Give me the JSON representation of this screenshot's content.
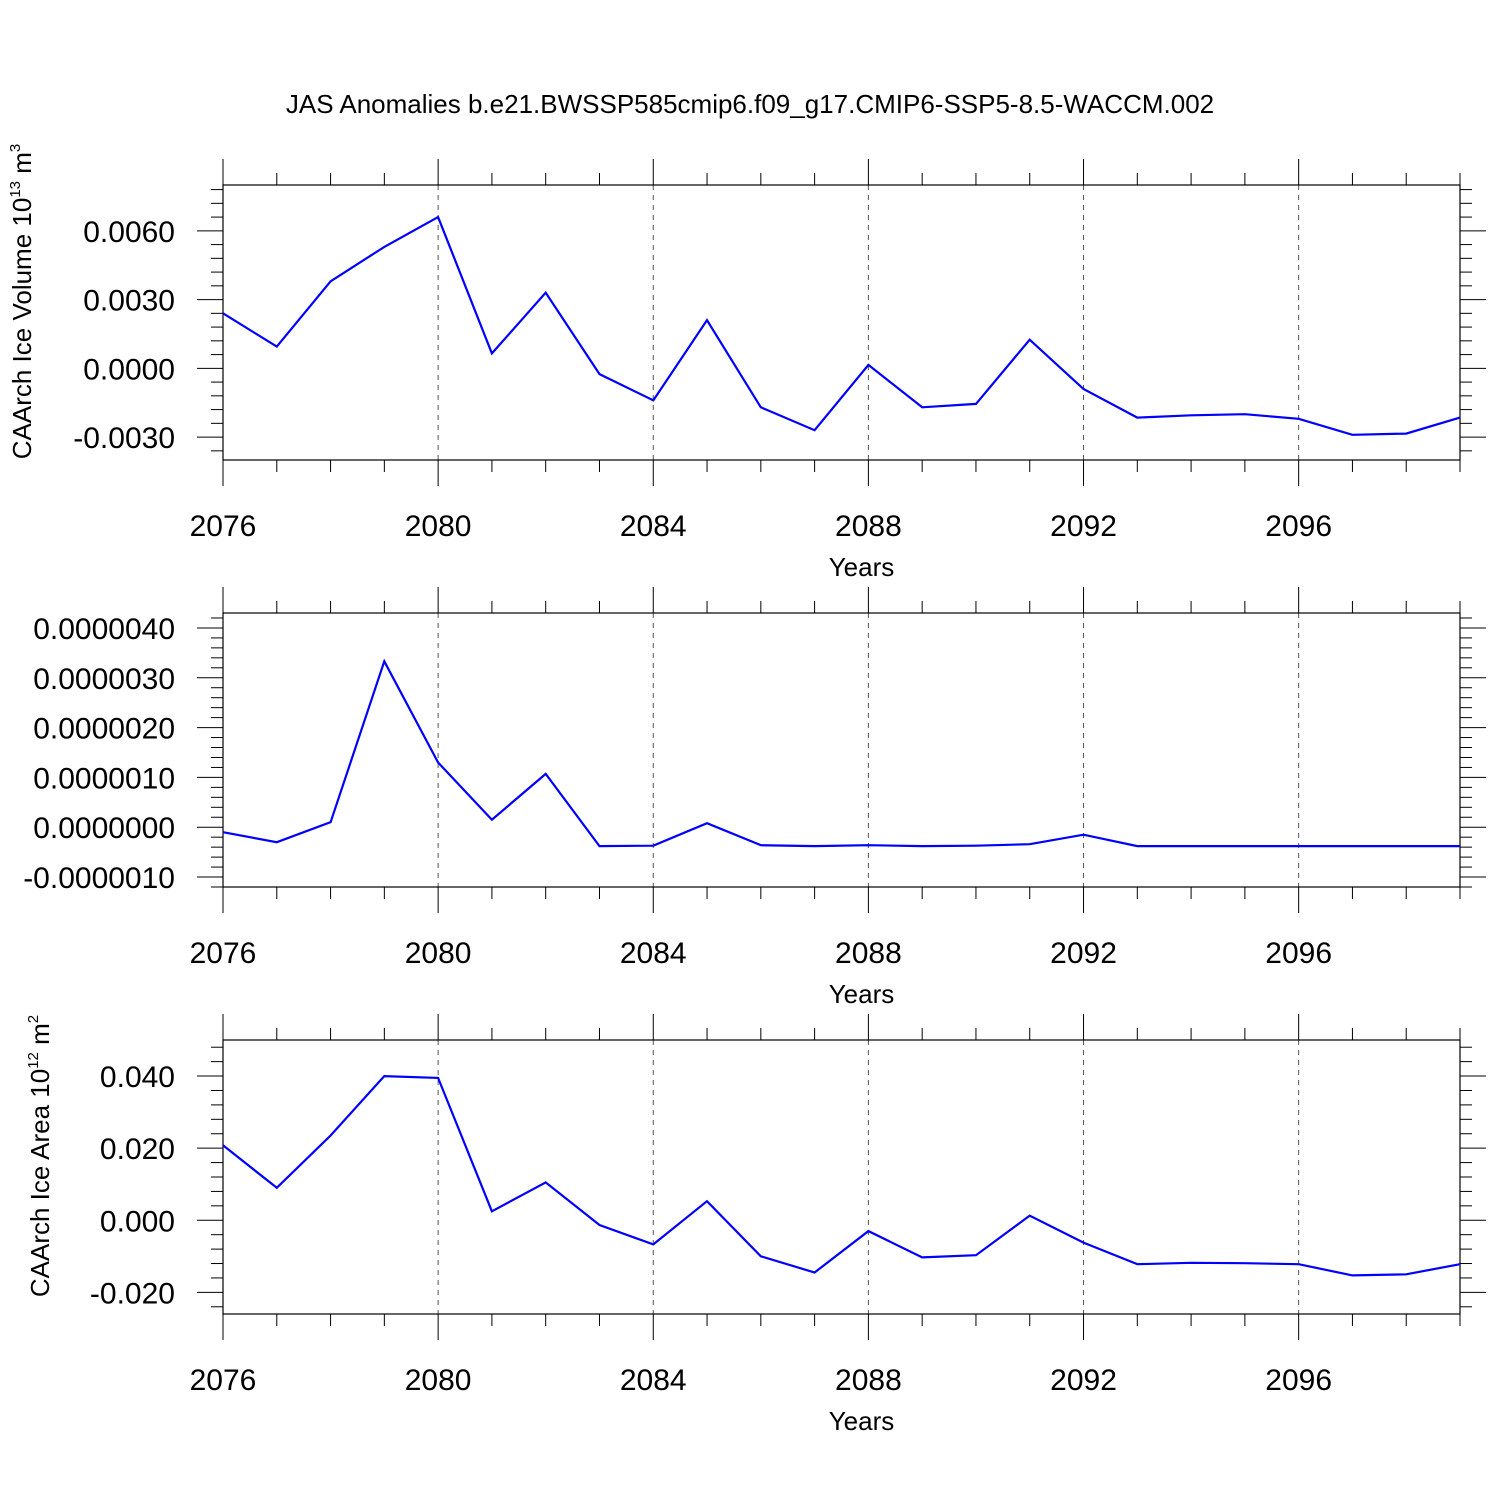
{
  "chart_data": {
    "title": "JAS Anomalies b.e21.BWSSP585cmip6.f09_g17.CMIP6-SSP5-8.5-WACCM.002",
    "type": "line",
    "line_color": "#0000ff",
    "grid_color": "#555555",
    "panels": [
      {
        "id": "volume",
        "type": "line",
        "ylabel": {
          "main": "CAArch Ice Volume 10",
          "exp": "13",
          "unit": " m",
          "unit_exp": "3"
        },
        "xlabel": "Years",
        "xlim": [
          2076,
          2099
        ],
        "ylim": [
          -0.004,
          0.008
        ],
        "x_ticks": [
          2076,
          2080,
          2084,
          2088,
          2092,
          2096
        ],
        "x_tick_labels": [
          "2076",
          "2080",
          "2084",
          "2088",
          "2092",
          "2096"
        ],
        "y_ticks": [
          -0.003,
          0.0,
          0.003,
          0.006
        ],
        "y_tick_labels": [
          "-0.0030",
          "0.0000",
          "0.0030",
          "0.0060"
        ],
        "x": [
          2076,
          2077,
          2078,
          2079,
          2080,
          2081,
          2082,
          2083,
          2084,
          2085,
          2086,
          2087,
          2088,
          2089,
          2090,
          2091,
          2092,
          2093,
          2094,
          2095,
          2096,
          2097,
          2098,
          2099
        ],
        "values": [
          0.0024,
          0.00095,
          0.0038,
          0.0053,
          0.0066,
          0.00065,
          0.0033,
          -0.00025,
          -0.0014,
          0.0021,
          -0.0017,
          -0.0027,
          0.00015,
          -0.0017,
          -0.00155,
          0.00125,
          -0.0009,
          -0.00215,
          -0.00205,
          -0.002,
          -0.0022,
          -0.0029,
          -0.00285,
          -0.00215
        ]
      },
      {
        "id": "middle",
        "type": "line",
        "ylabel": null,
        "xlabel": "Years",
        "xlim": [
          2076,
          2099
        ],
        "ylim": [
          -1.2e-06,
          4.3e-06
        ],
        "x_ticks": [
          2076,
          2080,
          2084,
          2088,
          2092,
          2096
        ],
        "x_tick_labels": [
          "2076",
          "2080",
          "2084",
          "2088",
          "2092",
          "2096"
        ],
        "y_ticks": [
          -1e-06,
          0.0,
          1e-06,
          2e-06,
          3e-06,
          4e-06
        ],
        "y_tick_labels": [
          "-0.0000010",
          "0.0000000",
          "0.0000010",
          "0.0000020",
          "0.0000030",
          "0.0000040"
        ],
        "x": [
          2076,
          2077,
          2078,
          2079,
          2080,
          2081,
          2082,
          2083,
          2084,
          2085,
          2086,
          2087,
          2088,
          2089,
          2090,
          2091,
          2092,
          2093,
          2094,
          2095,
          2096,
          2097,
          2098,
          2099
        ],
        "values": [
          -1e-07,
          -3e-07,
          1e-07,
          3.33e-06,
          1.3e-06,
          1.5e-07,
          1.07e-06,
          -3.8e-07,
          -3.7e-07,
          8e-08,
          -3.6e-07,
          -3.8e-07,
          -3.6e-07,
          -3.8e-07,
          -3.7e-07,
          -3.4e-07,
          -1.5e-07,
          -3.8e-07,
          -3.8e-07,
          -3.8e-07,
          -3.8e-07,
          -3.8e-07,
          -3.8e-07,
          -3.8e-07
        ]
      },
      {
        "id": "area",
        "type": "line",
        "ylabel": {
          "main": "CAArch Ice Area 10",
          "exp": "12",
          "unit": " m",
          "unit_exp": "2"
        },
        "xlabel": "Years",
        "xlim": [
          2076,
          2099
        ],
        "ylim": [
          -0.026,
          0.05
        ],
        "x_ticks": [
          2076,
          2080,
          2084,
          2088,
          2092,
          2096
        ],
        "x_tick_labels": [
          "2076",
          "2080",
          "2084",
          "2088",
          "2092",
          "2096"
        ],
        "y_ticks": [
          -0.02,
          0.0,
          0.02,
          0.04
        ],
        "y_tick_labels": [
          "-0.020",
          "0.000",
          "0.020",
          "0.040"
        ],
        "x": [
          2076,
          2077,
          2078,
          2079,
          2080,
          2081,
          2082,
          2083,
          2084,
          2085,
          2086,
          2087,
          2088,
          2089,
          2090,
          2091,
          2092,
          2093,
          2094,
          2095,
          2096,
          2097,
          2098,
          2099
        ],
        "values": [
          0.0208,
          0.009,
          0.0235,
          0.04,
          0.0395,
          0.0025,
          0.0105,
          -0.0013,
          -0.0067,
          0.0053,
          -0.01,
          -0.0145,
          -0.003,
          -0.0103,
          -0.0097,
          0.0013,
          -0.0062,
          -0.0122,
          -0.0118,
          -0.0119,
          -0.0122,
          -0.0153,
          -0.015,
          -0.0122
        ]
      }
    ]
  }
}
